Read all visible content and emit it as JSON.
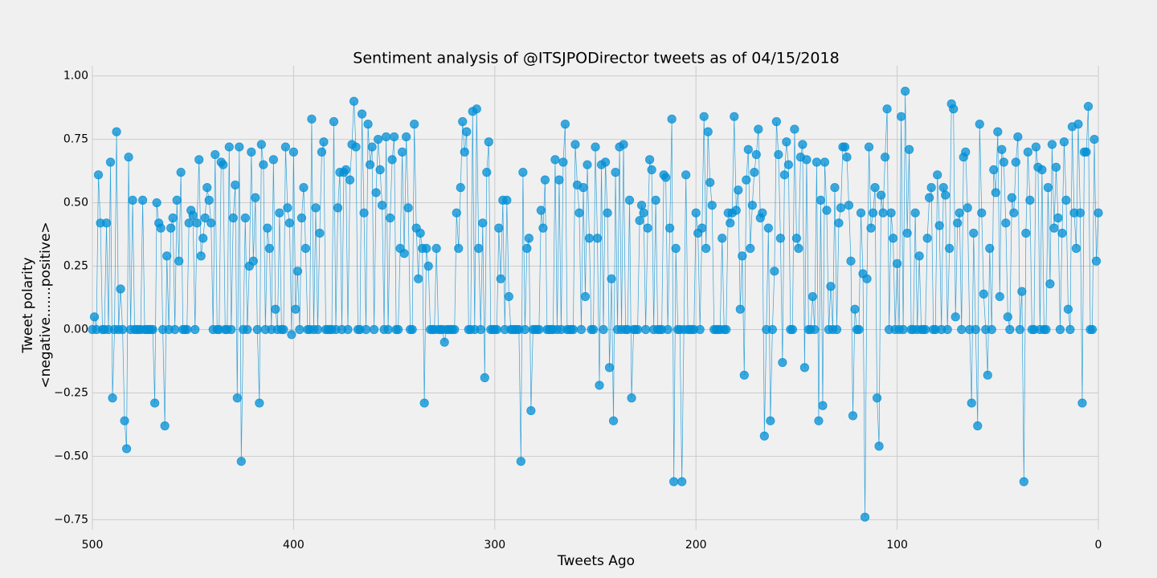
{
  "chart_data": {
    "type": "scatter-line",
    "title": "Sentiment analysis of @ITSJPODirector tweets as of 04/15/2018",
    "xlabel": "Tweets Ago",
    "ylabel": [
      "Tweet polarity",
      "<negative.......positive>"
    ],
    "color": "#008fd5",
    "grid": true,
    "xlim": [
      500,
      0
    ],
    "xticks": [
      500,
      400,
      300,
      200,
      100,
      0
    ],
    "ylim": [
      -0.79,
      1.04
    ],
    "yticks": [
      {
        "value": 1.0,
        "label": "1.00"
      },
      {
        "value": 0.75,
        "label": "0.75"
      },
      {
        "value": 0.5,
        "label": "0.50"
      },
      {
        "value": 0.25,
        "label": "0.25"
      },
      {
        "value": 0.0,
        "label": "0.00"
      },
      {
        "value": -0.25,
        "label": "−0.25"
      },
      {
        "value": -0.5,
        "label": "−0.50"
      },
      {
        "value": -0.75,
        "label": "−0.75"
      }
    ],
    "x": [
      500,
      499,
      498,
      497,
      496,
      495,
      494,
      493,
      492,
      491,
      490,
      489,
      488,
      487,
      486,
      485,
      484,
      483,
      482,
      481,
      480,
      479,
      478,
      477,
      476,
      475,
      474,
      473,
      472,
      471,
      470,
      469,
      468,
      467,
      466,
      465,
      464,
      463,
      462,
      461,
      460,
      459,
      458,
      457,
      456,
      455,
      454,
      453,
      452,
      451,
      450,
      449,
      448,
      447,
      446,
      445,
      444,
      443,
      442,
      441,
      440,
      439,
      438,
      437,
      436,
      435,
      434,
      433,
      432,
      431,
      430,
      429,
      428,
      427,
      426,
      425,
      424,
      423,
      422,
      421,
      420,
      419,
      418,
      417,
      416,
      415,
      414,
      413,
      412,
      411,
      410,
      409,
      408,
      407,
      406,
      405,
      404,
      403,
      402,
      401,
      400,
      399,
      398,
      397,
      396,
      395,
      394,
      393,
      392,
      391,
      390,
      389,
      388,
      387,
      386,
      385,
      384,
      383,
      382,
      381,
      380,
      379,
      378,
      377,
      376,
      375,
      374,
      373,
      372,
      371,
      370,
      369,
      368,
      367,
      366,
      365,
      364,
      363,
      362,
      361,
      360,
      359,
      358,
      357,
      356,
      355,
      354,
      353,
      352,
      351,
      350,
      349,
      348,
      347,
      346,
      345,
      344,
      343,
      342,
      341,
      340,
      339,
      338,
      337,
      336,
      335,
      334,
      333,
      332,
      331,
      330,
      329,
      328,
      327,
      326,
      325,
      324,
      323,
      322,
      321,
      320,
      319,
      318,
      317,
      316,
      315,
      314,
      313,
      312,
      311,
      310,
      309,
      308,
      307,
      306,
      305,
      304,
      303,
      302,
      301,
      300,
      299,
      298,
      297,
      296,
      295,
      294,
      293,
      292,
      291,
      290,
      289,
      288,
      287,
      286,
      285,
      284,
      283,
      282,
      281,
      280,
      279,
      278,
      277,
      276,
      275,
      274,
      273,
      272,
      271,
      270,
      269,
      268,
      267,
      266,
      265,
      264,
      263,
      262,
      261,
      260,
      259,
      258,
      257,
      256,
      255,
      254,
      253,
      252,
      251,
      250,
      249,
      248,
      247,
      246,
      245,
      244,
      243,
      242,
      241,
      240,
      239,
      238,
      237,
      236,
      235,
      234,
      233,
      232,
      231,
      230,
      229,
      228,
      227,
      226,
      225,
      224,
      223,
      222,
      221,
      220,
      219,
      218,
      217,
      216,
      215,
      214,
      213,
      212,
      211,
      210,
      209,
      208,
      207,
      206,
      205,
      204,
      203,
      202,
      201,
      200,
      199,
      198,
      197,
      196,
      195,
      194,
      193,
      192,
      191,
      190,
      189,
      188,
      187,
      186,
      185,
      184,
      183,
      182,
      181,
      180,
      179,
      178,
      177,
      176,
      175,
      174,
      173,
      172,
      171,
      170,
      169,
      168,
      167,
      166,
      165,
      164,
      163,
      162,
      161,
      160,
      159,
      158,
      157,
      156,
      155,
      154,
      153,
      152,
      151,
      150,
      149,
      148,
      147,
      146,
      145,
      144,
      143,
      142,
      141,
      140,
      139,
      138,
      137,
      136,
      135,
      134,
      133,
      132,
      131,
      130,
      129,
      128,
      127,
      126,
      125,
      124,
      123,
      122,
      121,
      120,
      119,
      118,
      117,
      116,
      115,
      114,
      113,
      112,
      111,
      110,
      109,
      108,
      107,
      106,
      105,
      104,
      103,
      102,
      101,
      100,
      99,
      98,
      97,
      96,
      95,
      94,
      93,
      92,
      91,
      90,
      89,
      88,
      87,
      86,
      85,
      84,
      83,
      82,
      81,
      80,
      79,
      78,
      77,
      76,
      75,
      74,
      73,
      72,
      71,
      70,
      69,
      68,
      67,
      66,
      65,
      64,
      63,
      62,
      61,
      60,
      59,
      58,
      57,
      56,
      55,
      54,
      53,
      52,
      51,
      50,
      49,
      48,
      47,
      46,
      45,
      44,
      43,
      42,
      41,
      40,
      39,
      38,
      37,
      36,
      35,
      34,
      33,
      32,
      31,
      30,
      29,
      28,
      27,
      26,
      25,
      24,
      23,
      22,
      21,
      20,
      19,
      18,
      17,
      16,
      15,
      14,
      13,
      12,
      11,
      10,
      9,
      8,
      7,
      6,
      5,
      4,
      3,
      2,
      1,
      0
    ],
    "values": [
      0,
      0.05,
      0,
      0.61,
      0.42,
      0,
      0,
      0.42,
      0,
      0.66,
      -0.27,
      0,
      0.78,
      0,
      0.16,
      0,
      -0.36,
      -0.47,
      0.68,
      0,
      0.51,
      0,
      0,
      0,
      0,
      0.51,
      0,
      0,
      0,
      0,
      0,
      -0.29,
      0.5,
      0.42,
      0.4,
      0,
      -0.38,
      0.29,
      0,
      0.4,
      0.44,
      0,
      0.51,
      0.27,
      0.62,
      0,
      0,
      0,
      0.42,
      0.47,
      0.45,
      0,
      0.42,
      0.67,
      0.29,
      0.36,
      0.44,
      0.56,
      0.51,
      0.42,
      0,
      0.69,
      0,
      0,
      0.66,
      0.65,
      0,
      0,
      0.72,
      0,
      0.44,
      0.57,
      -0.27,
      0.72,
      -0.52,
      0,
      0.44,
      0,
      0.25,
      0.7,
      0.27,
      0.52,
      0,
      -0.29,
      0.73,
      0.65,
      0,
      0.4,
      0.32,
      0,
      0.67,
      0.08,
      0,
      0.46,
      0,
      0,
      0.72,
      0.48,
      0.42,
      -0.02,
      0.7,
      0.08,
      0.23,
      0,
      0.44,
      0.56,
      0.32,
      0,
      0,
      0.83,
      0,
      0.48,
      0,
      0.38,
      0.7,
      0.74,
      0,
      0,
      0,
      0,
      0.82,
      0,
      0.48,
      0.62,
      0,
      0.62,
      0.63,
      0,
      0.59,
      0.73,
      0.9,
      0.72,
      0,
      0,
      0.85,
      0.46,
      0,
      0.81,
      0.65,
      0.72,
      0,
      0.54,
      0.75,
      0.63,
      0.49,
      0,
      0.76,
      0,
      0.44,
      0.67,
      0.76,
      0,
      0,
      0.32,
      0.7,
      0.3,
      0.76,
      0.48,
      0,
      0,
      0.81,
      0.4,
      0.2,
      0.38,
      0.32,
      -0.29,
      0.32,
      0.25,
      0,
      0,
      0,
      0.32,
      0,
      0,
      0,
      -0.05,
      0,
      0,
      0,
      0,
      0,
      0.46,
      0.32,
      0.56,
      0.82,
      0.7,
      0.78,
      0,
      0,
      0.86,
      0,
      0.87,
      0.32,
      0,
      0.42,
      -0.19,
      0.62,
      0.74,
      0,
      0,
      0,
      0,
      0.4,
      0.2,
      0.51,
      0,
      0.51,
      0.13,
      0,
      0,
      0,
      0,
      0,
      -0.52,
      0.62,
      0,
      0.32,
      0.36,
      -0.32,
      0,
      0,
      0,
      0,
      0.47,
      0.4,
      0.59,
      0,
      0,
      0,
      0,
      0.67,
      0,
      0.59,
      0,
      0.66,
      0.81,
      0,
      0,
      0,
      0,
      0.73,
      0.57,
      0.46,
      0,
      0.56,
      0.13,
      0.65,
      0.36,
      0,
      0,
      0.72,
      0.36,
      -0.22,
      0.65,
      0,
      0.66,
      0.46,
      -0.15,
      0.2,
      -0.36,
      0.62,
      0,
      0.72,
      0,
      0.73,
      0,
      0,
      0.51,
      -0.27,
      0,
      0,
      0,
      0.43,
      0.49,
      0.46,
      0,
      0.4,
      0.67,
      0.63,
      0,
      0.51,
      0,
      0,
      0,
      0.61,
      0.6,
      0,
      0.4,
      0.83,
      -0.6,
      0.32,
      0,
      0,
      -0.6,
      0,
      0.61,
      0,
      0,
      0,
      0,
      0.46,
      0.38,
      0,
      0.4,
      0.84,
      0.32,
      0.78,
      0.58,
      0.49,
      0,
      0,
      0,
      0,
      0.36,
      0,
      0,
      0.46,
      0.42,
      0.46,
      0.84,
      0.47,
      0.55,
      0.08,
      0.29,
      -0.18,
      0.59,
      0.71,
      0.32,
      0.49,
      0.62,
      0.69,
      0.79,
      0.44,
      0.46,
      -0.42,
      0,
      0.4,
      -0.36,
      0,
      0.23,
      0.82,
      0.69,
      0.36,
      -0.13,
      0.61,
      0.74,
      0.65,
      0,
      0,
      0.79,
      0.36,
      0.32,
      0.68,
      0.73,
      -0.15,
      0.67,
      0,
      0,
      0.13,
      0,
      0.66,
      -0.36,
      0.51,
      -0.3,
      0.66,
      0.47,
      0,
      0.17,
      0,
      0.56,
      0,
      0.42,
      0.48,
      0.72,
      0.72,
      0.68,
      0.49,
      0.27,
      -0.34,
      0.08,
      0,
      0,
      0.46,
      0.22,
      -0.74,
      0.2,
      0.72,
      0.4,
      0.46,
      0.56,
      -0.27,
      -0.46,
      0.53,
      0.46,
      0.68,
      0.87,
      0,
      0.46,
      0.36,
      0,
      0.26,
      0,
      0.84,
      0,
      0.94,
      0.38,
      0.71,
      0,
      0,
      0.46,
      0,
      0.29,
      0,
      0,
      0,
      0.36,
      0.52,
      0.56,
      0,
      0,
      0.61,
      0.41,
      0,
      0.56,
      0.53,
      0,
      0.32,
      0.89,
      0.87,
      0.05,
      0.42,
      0.46,
      0,
      0.68,
      0.7,
      0.48,
      0,
      -0.29,
      0.38,
      0,
      -0.38,
      0.81,
      0.46,
      0.14,
      0,
      -0.18,
      0.32,
      0,
      0.63,
      0.54,
      0.78,
      0.13,
      0.71,
      0.66,
      0.42,
      0.05,
      0,
      0.52,
      0.46,
      0.66,
      0.76,
      0,
      0.15,
      -0.6,
      0.38,
      0.7,
      0.51,
      0,
      0,
      0.72,
      0.64,
      0,
      0.63,
      0,
      0,
      0.56,
      0.18,
      0.73,
      0.4,
      0.64,
      0.44,
      0,
      0.38,
      0.74,
      0.51,
      0.08,
      0,
      0.8,
      0.46,
      0.32,
      0.81,
      0.46,
      -0.29,
      0.7,
      0.7,
      0.88,
      0,
      0,
      0.75,
      0.27,
      0.46
    ]
  }
}
